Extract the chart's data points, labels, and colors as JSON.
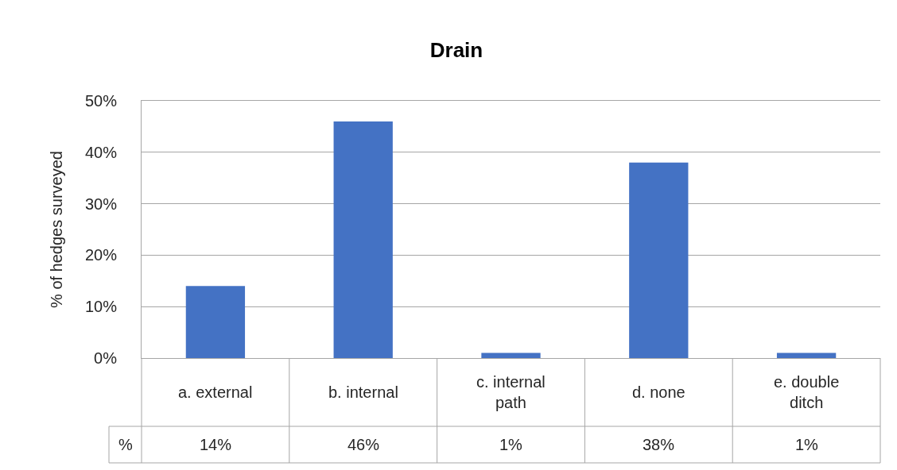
{
  "chart_data": {
    "type": "bar",
    "title": "Drain",
    "ylabel": "% of hedges surveyed",
    "categories": [
      "a. external",
      "b. internal",
      "c. internal path",
      "d. none",
      "e. double ditch"
    ],
    "series": [
      {
        "name": "%",
        "color": "#4472c4",
        "values": [
          14,
          46,
          1,
          38,
          1
        ],
        "value_labels": [
          "14%",
          "46%",
          "1%",
          "38%",
          "1%"
        ]
      }
    ],
    "ylim": [
      0,
      50
    ],
    "yticks": [
      {
        "value": 0,
        "label": "0%"
      },
      {
        "value": 10,
        "label": "10%"
      },
      {
        "value": 20,
        "label": "20%"
      },
      {
        "value": 30,
        "label": "30%"
      },
      {
        "value": 40,
        "label": "40%"
      },
      {
        "value": 50,
        "label": "50%"
      }
    ],
    "grid": "y",
    "legend": false
  }
}
